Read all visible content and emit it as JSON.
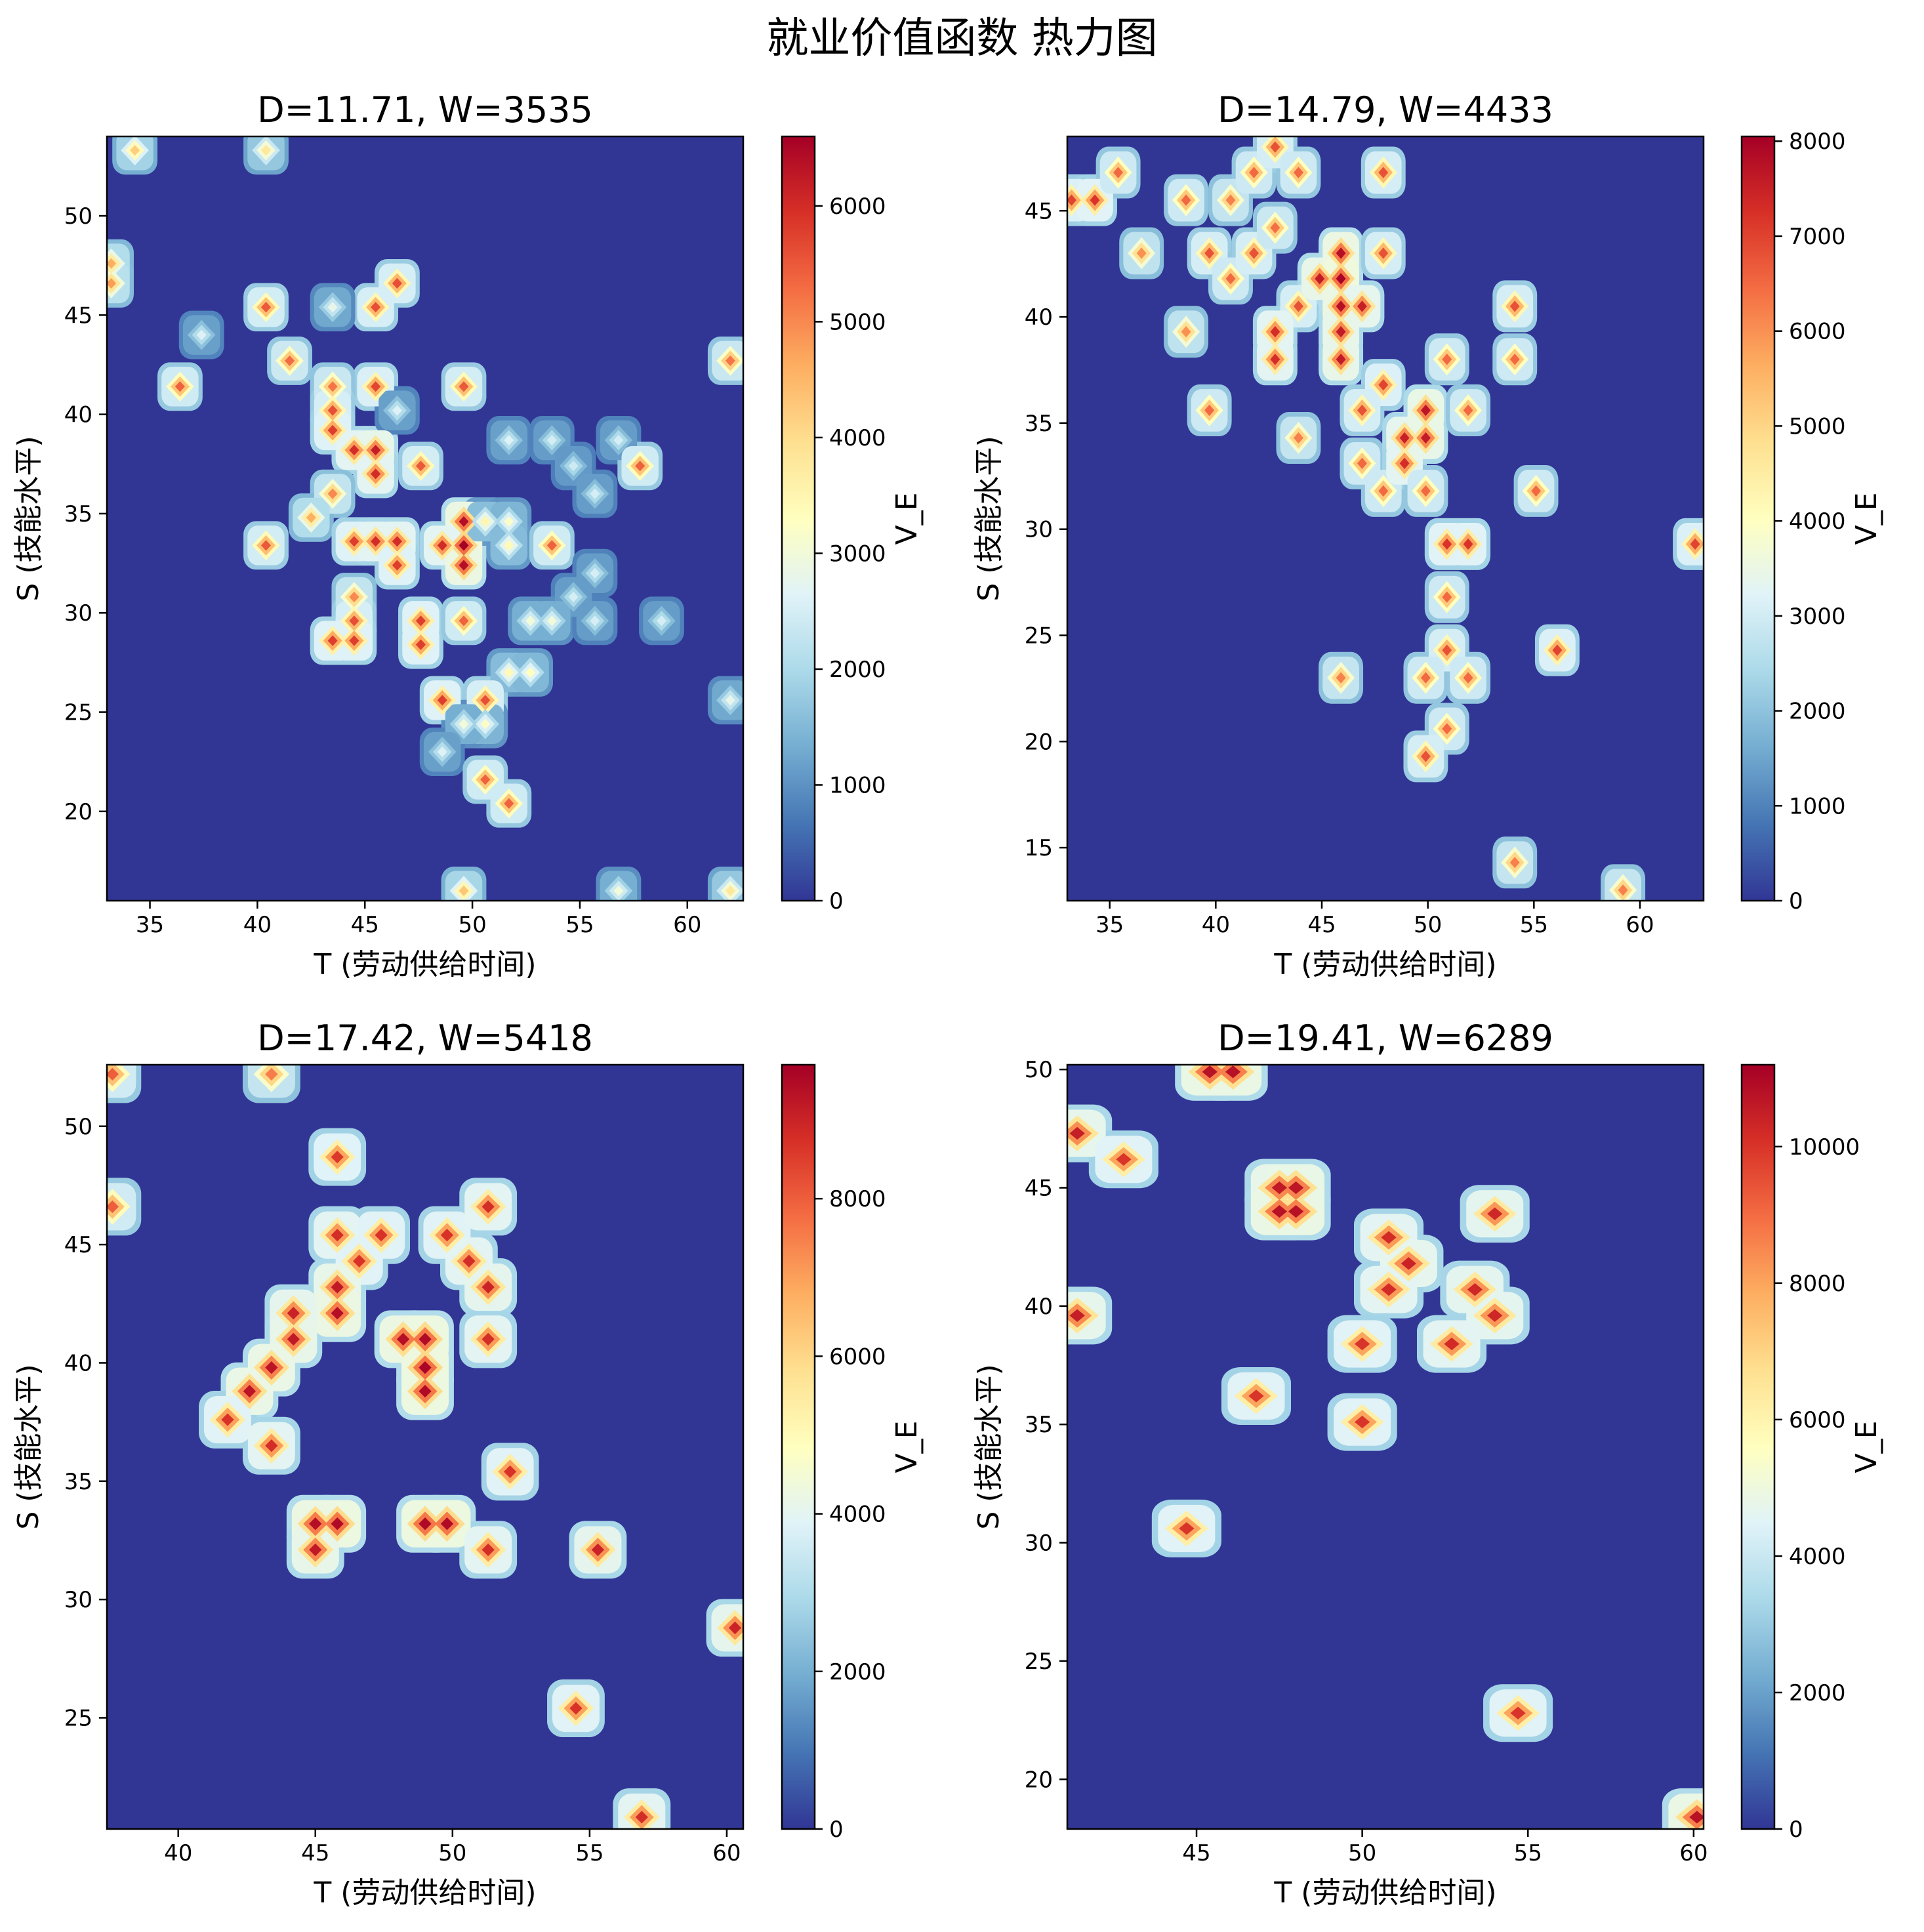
{
  "figure": {
    "title": "就业价值函数 热力图"
  },
  "chart_data": [
    {
      "type": "heatmap",
      "title": "D=11.71, W=3535",
      "xlabel": "T (劳动供给时间)",
      "ylabel": "S (技能水平)",
      "colorbar_label": "V_E",
      "xlim": [
        33.0,
        62.6
      ],
      "ylim": [
        15.5,
        54.0
      ],
      "vlim": [
        0,
        6600
      ],
      "xticks": [
        35,
        40,
        45,
        50,
        55,
        60
      ],
      "yticks": [
        20,
        25,
        30,
        35,
        40,
        45,
        50
      ],
      "cticks": [
        0,
        1000,
        2000,
        3000,
        4000,
        5000,
        6000
      ],
      "colormap": "RdYlBu_r",
      "background_value": 0,
      "points": [
        {
          "t": 34.3,
          "s": 53.3,
          "v": 4200
        },
        {
          "t": 40.4,
          "s": 53.3,
          "v": 3800
        },
        {
          "t": 33.2,
          "s": 47.6,
          "v": 4600
        },
        {
          "t": 33.2,
          "s": 46.6,
          "v": 4800
        },
        {
          "t": 46.5,
          "s": 46.6,
          "v": 5600
        },
        {
          "t": 45.5,
          "s": 45.4,
          "v": 5600
        },
        {
          "t": 40.4,
          "s": 45.4,
          "v": 5500
        },
        {
          "t": 43.5,
          "s": 45.4,
          "v": 2800
        },
        {
          "t": 37.4,
          "s": 44.0,
          "v": 2600
        },
        {
          "t": 41.5,
          "s": 42.7,
          "v": 5300
        },
        {
          "t": 62.0,
          "s": 42.7,
          "v": 5200
        },
        {
          "t": 36.4,
          "s": 41.4,
          "v": 5400
        },
        {
          "t": 49.6,
          "s": 41.4,
          "v": 5500
        },
        {
          "t": 45.5,
          "s": 41.4,
          "v": 5700
        },
        {
          "t": 43.5,
          "s": 41.4,
          "v": 5200
        },
        {
          "t": 43.5,
          "s": 40.2,
          "v": 5600
        },
        {
          "t": 43.5,
          "s": 39.2,
          "v": 5800
        },
        {
          "t": 44.5,
          "s": 38.2,
          "v": 6000
        },
        {
          "t": 45.5,
          "s": 38.2,
          "v": 6200
        },
        {
          "t": 45.5,
          "s": 37.0,
          "v": 6000
        },
        {
          "t": 46.5,
          "s": 40.2,
          "v": 2600
        },
        {
          "t": 47.6,
          "s": 37.4,
          "v": 5500
        },
        {
          "t": 51.7,
          "s": 38.7,
          "v": 2600
        },
        {
          "t": 53.7,
          "s": 38.7,
          "v": 2500
        },
        {
          "t": 56.8,
          "s": 38.7,
          "v": 2500
        },
        {
          "t": 54.7,
          "s": 37.4,
          "v": 2400
        },
        {
          "t": 57.8,
          "s": 37.4,
          "v": 5400
        },
        {
          "t": 55.7,
          "s": 36.0,
          "v": 2500
        },
        {
          "t": 43.5,
          "s": 36.0,
          "v": 5000
        },
        {
          "t": 42.5,
          "s": 34.8,
          "v": 4600
        },
        {
          "t": 44.5,
          "s": 33.6,
          "v": 5800
        },
        {
          "t": 45.5,
          "s": 33.6,
          "v": 6000
        },
        {
          "t": 46.5,
          "s": 33.6,
          "v": 6000
        },
        {
          "t": 46.5,
          "s": 32.4,
          "v": 5800
        },
        {
          "t": 40.4,
          "s": 33.4,
          "v": 5500
        },
        {
          "t": 49.6,
          "s": 34.6,
          "v": 6400
        },
        {
          "t": 49.6,
          "s": 33.4,
          "v": 6600
        },
        {
          "t": 48.6,
          "s": 33.4,
          "v": 6000
        },
        {
          "t": 49.6,
          "s": 32.4,
          "v": 6400
        },
        {
          "t": 50.6,
          "s": 34.6,
          "v": 3500
        },
        {
          "t": 51.7,
          "s": 34.6,
          "v": 3200
        },
        {
          "t": 51.7,
          "s": 33.4,
          "v": 3400
        },
        {
          "t": 53.7,
          "s": 33.4,
          "v": 5400
        },
        {
          "t": 55.7,
          "s": 32.0,
          "v": 2500
        },
        {
          "t": 54.7,
          "s": 30.8,
          "v": 2500
        },
        {
          "t": 44.5,
          "s": 30.8,
          "v": 5000
        },
        {
          "t": 44.5,
          "s": 29.6,
          "v": 5600
        },
        {
          "t": 43.5,
          "s": 28.6,
          "v": 5800
        },
        {
          "t": 44.5,
          "s": 28.6,
          "v": 5800
        },
        {
          "t": 47.6,
          "s": 29.6,
          "v": 5800
        },
        {
          "t": 47.6,
          "s": 28.4,
          "v": 5800
        },
        {
          "t": 49.6,
          "s": 29.6,
          "v": 5400
        },
        {
          "t": 52.7,
          "s": 29.6,
          "v": 3000
        },
        {
          "t": 53.7,
          "s": 29.6,
          "v": 3000
        },
        {
          "t": 55.7,
          "s": 29.6,
          "v": 2500
        },
        {
          "t": 58.8,
          "s": 29.6,
          "v": 2500
        },
        {
          "t": 51.7,
          "s": 27.0,
          "v": 3400
        },
        {
          "t": 52.7,
          "s": 27.0,
          "v": 3300
        },
        {
          "t": 48.6,
          "s": 25.6,
          "v": 5800
        },
        {
          "t": 50.6,
          "s": 25.6,
          "v": 5600
        },
        {
          "t": 50.6,
          "s": 24.4,
          "v": 3200
        },
        {
          "t": 49.6,
          "s": 24.4,
          "v": 3000
        },
        {
          "t": 48.6,
          "s": 23.0,
          "v": 2600
        },
        {
          "t": 62.0,
          "s": 25.6,
          "v": 2800
        },
        {
          "t": 50.6,
          "s": 21.6,
          "v": 5400
        },
        {
          "t": 51.7,
          "s": 20.4,
          "v": 5400
        },
        {
          "t": 49.6,
          "s": 16.0,
          "v": 4300
        },
        {
          "t": 56.8,
          "s": 16.0,
          "v": 3000
        },
        {
          "t": 62.0,
          "s": 16.0,
          "v": 3800
        }
      ]
    },
    {
      "type": "heatmap",
      "title": "D=14.79, W=4433",
      "xlabel": "T (劳动供给时间)",
      "ylabel": "S (技能水平)",
      "colorbar_label": "V_E",
      "xlim": [
        33.0,
        63.0
      ],
      "ylim": [
        12.5,
        48.5
      ],
      "vlim": [
        0,
        8050
      ],
      "xticks": [
        35,
        40,
        45,
        50,
        55,
        60
      ],
      "yticks": [
        15,
        20,
        25,
        30,
        35,
        40,
        45
      ],
      "cticks": [
        0,
        1000,
        2000,
        3000,
        4000,
        5000,
        6000,
        7000,
        8000
      ],
      "colormap": "RdYlBu_r",
      "background_value": 0,
      "points": [
        {
          "t": 33.2,
          "s": 45.5,
          "v": 7000
        },
        {
          "t": 34.3,
          "s": 45.5,
          "v": 7200
        },
        {
          "t": 35.4,
          "s": 46.8,
          "v": 6500
        },
        {
          "t": 36.5,
          "s": 43.0,
          "v": 6000
        },
        {
          "t": 38.6,
          "s": 45.5,
          "v": 6500
        },
        {
          "t": 38.6,
          "s": 39.3,
          "v": 6000
        },
        {
          "t": 39.7,
          "s": 43.0,
          "v": 6800
        },
        {
          "t": 39.7,
          "s": 35.6,
          "v": 6500
        },
        {
          "t": 40.7,
          "s": 45.5,
          "v": 6200
        },
        {
          "t": 40.7,
          "s": 41.8,
          "v": 6500
        },
        {
          "t": 41.8,
          "s": 46.8,
          "v": 6500
        },
        {
          "t": 41.8,
          "s": 43.0,
          "v": 6800
        },
        {
          "t": 42.8,
          "s": 48.0,
          "v": 6800
        },
        {
          "t": 42.8,
          "s": 44.2,
          "v": 6400
        },
        {
          "t": 43.9,
          "s": 46.8,
          "v": 6500
        },
        {
          "t": 43.9,
          "s": 40.5,
          "v": 6800
        },
        {
          "t": 42.8,
          "s": 39.3,
          "v": 7300
        },
        {
          "t": 42.8,
          "s": 38.0,
          "v": 7300
        },
        {
          "t": 43.9,
          "s": 34.3,
          "v": 6200
        },
        {
          "t": 44.9,
          "s": 41.8,
          "v": 7600
        },
        {
          "t": 45.9,
          "s": 43.0,
          "v": 7800
        },
        {
          "t": 45.9,
          "s": 41.8,
          "v": 8000
        },
        {
          "t": 45.9,
          "s": 40.5,
          "v": 7800
        },
        {
          "t": 46.9,
          "s": 40.5,
          "v": 7500
        },
        {
          "t": 45.9,
          "s": 39.3,
          "v": 7600
        },
        {
          "t": 45.9,
          "s": 38.0,
          "v": 7600
        },
        {
          "t": 47.9,
          "s": 46.8,
          "v": 6800
        },
        {
          "t": 47.9,
          "s": 43.0,
          "v": 6800
        },
        {
          "t": 47.9,
          "s": 36.8,
          "v": 7000
        },
        {
          "t": 46.9,
          "s": 35.6,
          "v": 6800
        },
        {
          "t": 46.9,
          "s": 33.1,
          "v": 6500
        },
        {
          "t": 47.9,
          "s": 31.8,
          "v": 6500
        },
        {
          "t": 48.9,
          "s": 34.3,
          "v": 7500
        },
        {
          "t": 48.9,
          "s": 33.1,
          "v": 7300
        },
        {
          "t": 49.9,
          "s": 34.3,
          "v": 7600
        },
        {
          "t": 49.9,
          "s": 35.6,
          "v": 7700
        },
        {
          "t": 49.9,
          "s": 31.8,
          "v": 6500
        },
        {
          "t": 50.9,
          "s": 38.0,
          "v": 6500
        },
        {
          "t": 51.9,
          "s": 35.6,
          "v": 6500
        },
        {
          "t": 54.1,
          "s": 40.5,
          "v": 6800
        },
        {
          "t": 54.1,
          "s": 38.0,
          "v": 6500
        },
        {
          "t": 55.1,
          "s": 31.8,
          "v": 6500
        },
        {
          "t": 50.9,
          "s": 29.3,
          "v": 7200
        },
        {
          "t": 51.9,
          "s": 29.3,
          "v": 7200
        },
        {
          "t": 62.6,
          "s": 29.3,
          "v": 7000
        },
        {
          "t": 50.9,
          "s": 26.8,
          "v": 6500
        },
        {
          "t": 50.9,
          "s": 24.3,
          "v": 6800
        },
        {
          "t": 49.9,
          "s": 23.0,
          "v": 6500
        },
        {
          "t": 51.9,
          "s": 23.0,
          "v": 6500
        },
        {
          "t": 45.9,
          "s": 23.0,
          "v": 6200
        },
        {
          "t": 56.1,
          "s": 24.3,
          "v": 7000
        },
        {
          "t": 50.9,
          "s": 20.6,
          "v": 6500
        },
        {
          "t": 49.9,
          "s": 19.3,
          "v": 6800
        },
        {
          "t": 54.1,
          "s": 14.3,
          "v": 6200
        },
        {
          "t": 59.2,
          "s": 13.0,
          "v": 6200
        }
      ]
    },
    {
      "type": "heatmap",
      "title": "D=17.42, W=5418",
      "xlabel": "T (劳动供给时间)",
      "ylabel": "S (技能水平)",
      "colorbar_label": "V_E",
      "xlim": [
        37.4,
        60.6
      ],
      "ylim": [
        20.3,
        52.6
      ],
      "vlim": [
        0,
        9700
      ],
      "xticks": [
        40,
        45,
        50,
        55,
        60
      ],
      "yticks": [
        25,
        30,
        35,
        40,
        45,
        50
      ],
      "cticks": [
        0,
        2000,
        4000,
        6000,
        8000
      ],
      "colormap": "RdYlBu_r",
      "background_value": 0,
      "points": [
        {
          "t": 37.6,
          "s": 52.2,
          "v": 8000
        },
        {
          "t": 43.4,
          "s": 52.2,
          "v": 7500
        },
        {
          "t": 37.6,
          "s": 46.6,
          "v": 8000
        },
        {
          "t": 45.8,
          "s": 48.7,
          "v": 8600
        },
        {
          "t": 45.8,
          "s": 45.4,
          "v": 8800
        },
        {
          "t": 47.4,
          "s": 45.4,
          "v": 8700
        },
        {
          "t": 46.6,
          "s": 44.3,
          "v": 8700
        },
        {
          "t": 49.8,
          "s": 45.4,
          "v": 8700
        },
        {
          "t": 50.6,
          "s": 44.3,
          "v": 8800
        },
        {
          "t": 51.3,
          "s": 43.2,
          "v": 9000
        },
        {
          "t": 51.3,
          "s": 46.6,
          "v": 8800
        },
        {
          "t": 51.3,
          "s": 41.0,
          "v": 8800
        },
        {
          "t": 45.8,
          "s": 43.2,
          "v": 9200
        },
        {
          "t": 45.8,
          "s": 42.1,
          "v": 9400
        },
        {
          "t": 44.2,
          "s": 42.1,
          "v": 9000
        },
        {
          "t": 44.2,
          "s": 41.0,
          "v": 9200
        },
        {
          "t": 43.4,
          "s": 39.8,
          "v": 9300
        },
        {
          "t": 42.6,
          "s": 38.8,
          "v": 9300
        },
        {
          "t": 41.8,
          "s": 37.6,
          "v": 8700
        },
        {
          "t": 43.4,
          "s": 36.5,
          "v": 8800
        },
        {
          "t": 48.2,
          "s": 41.0,
          "v": 9400
        },
        {
          "t": 49.0,
          "s": 41.0,
          "v": 9500
        },
        {
          "t": 49.0,
          "s": 39.8,
          "v": 9600
        },
        {
          "t": 49.0,
          "s": 38.8,
          "v": 9500
        },
        {
          "t": 52.1,
          "s": 35.4,
          "v": 8700
        },
        {
          "t": 45.8,
          "s": 33.2,
          "v": 9500
        },
        {
          "t": 45.0,
          "s": 33.2,
          "v": 9400
        },
        {
          "t": 45.0,
          "s": 32.1,
          "v": 9200
        },
        {
          "t": 49.0,
          "s": 33.2,
          "v": 9500
        },
        {
          "t": 49.8,
          "s": 33.2,
          "v": 9500
        },
        {
          "t": 51.3,
          "s": 32.1,
          "v": 8800
        },
        {
          "t": 55.3,
          "s": 32.1,
          "v": 9000
        },
        {
          "t": 60.3,
          "s": 28.8,
          "v": 9000
        },
        {
          "t": 54.5,
          "s": 25.4,
          "v": 8700
        },
        {
          "t": 56.9,
          "s": 20.8,
          "v": 8800
        }
      ]
    },
    {
      "type": "heatmap",
      "title": "D=19.41, W=6289",
      "xlabel": "T (劳动供给时间)",
      "ylabel": "S (技能水平)",
      "colorbar_label": "V_E",
      "xlim": [
        41.1,
        60.3
      ],
      "ylim": [
        17.9,
        50.2
      ],
      "vlim": [
        0,
        11200
      ],
      "xticks": [
        45,
        50,
        55,
        60
      ],
      "yticks": [
        20,
        25,
        30,
        35,
        40,
        45,
        50
      ],
      "cticks": [
        0,
        2000,
        4000,
        6000,
        8000,
        10000
      ],
      "colormap": "RdYlBu_r",
      "background_value": 0,
      "points": [
        {
          "t": 45.4,
          "s": 49.9,
          "v": 10800
        },
        {
          "t": 46.1,
          "s": 49.9,
          "v": 10800
        },
        {
          "t": 41.4,
          "s": 47.3,
          "v": 10500
        },
        {
          "t": 42.8,
          "s": 46.2,
          "v": 10000
        },
        {
          "t": 47.5,
          "s": 45.0,
          "v": 10600
        },
        {
          "t": 48.0,
          "s": 45.0,
          "v": 10700
        },
        {
          "t": 47.5,
          "s": 44.0,
          "v": 10800
        },
        {
          "t": 48.0,
          "s": 44.0,
          "v": 10800
        },
        {
          "t": 54.0,
          "s": 43.9,
          "v": 10300
        },
        {
          "t": 50.8,
          "s": 42.9,
          "v": 10200
        },
        {
          "t": 51.4,
          "s": 41.8,
          "v": 10400
        },
        {
          "t": 50.8,
          "s": 40.7,
          "v": 10200
        },
        {
          "t": 53.4,
          "s": 40.7,
          "v": 10300
        },
        {
          "t": 54.0,
          "s": 39.6,
          "v": 10300
        },
        {
          "t": 41.4,
          "s": 39.6,
          "v": 10500
        },
        {
          "t": 50.0,
          "s": 38.4,
          "v": 10000
        },
        {
          "t": 52.7,
          "s": 38.4,
          "v": 10200
        },
        {
          "t": 46.8,
          "s": 36.2,
          "v": 10000
        },
        {
          "t": 50.0,
          "s": 35.1,
          "v": 10000
        },
        {
          "t": 44.7,
          "s": 30.6,
          "v": 10000
        },
        {
          "t": 54.7,
          "s": 22.8,
          "v": 10000
        },
        {
          "t": 60.1,
          "s": 18.4,
          "v": 10800
        }
      ]
    }
  ]
}
